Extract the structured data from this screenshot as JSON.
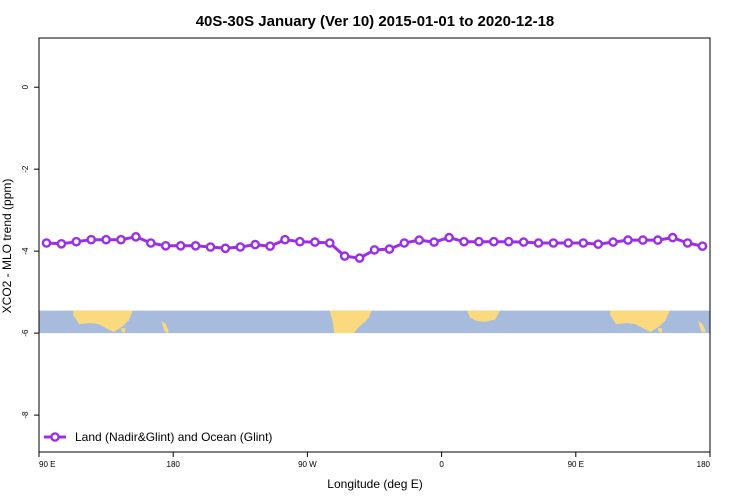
{
  "chart_data": {
    "type": "line",
    "title": "40S-30S January (Ver 10)   2015-01-01 to 2020-12-18",
    "xlabel": "Longitude (deg E)",
    "ylabel": "XCO2 - MLO trend (ppm)",
    "x_ticks": [
      {
        "value": 90,
        "label": "90 E"
      },
      {
        "value": 180,
        "label": "180"
      },
      {
        "value": 270,
        "label": "90 W"
      },
      {
        "value": 360,
        "label": "0"
      },
      {
        "value": 450,
        "label": "90 E"
      },
      {
        "value": 540,
        "label": "180"
      }
    ],
    "y_ticks": [
      {
        "value": 0,
        "label": "0"
      },
      {
        "value": -2,
        "label": "-2"
      },
      {
        "value": -4,
        "label": "-4"
      },
      {
        "value": -6,
        "label": "-6"
      },
      {
        "value": -8,
        "label": "-8"
      }
    ],
    "xlim": [
      90,
      540
    ],
    "ylim": [
      -8.9,
      1.2
    ],
    "map_strip_ylim": [
      -6.0,
      -5.45
    ],
    "series": [
      {
        "name": "Land (Nadir&Glint) and Ocean (Glint)",
        "color": "#9b2fe6",
        "x": [
          95,
          105,
          115,
          125,
          135,
          145,
          155,
          165,
          175,
          185,
          195,
          205,
          215,
          225,
          235,
          245,
          255,
          265,
          275,
          285,
          295,
          305,
          315,
          325,
          335,
          345,
          355,
          365,
          375,
          385,
          395,
          405,
          415,
          425,
          435,
          445,
          455,
          465,
          475,
          485,
          495,
          505,
          515,
          525,
          535
        ],
        "y": [
          -3.8,
          -3.82,
          -3.77,
          -3.72,
          -3.72,
          -3.72,
          -3.65,
          -3.8,
          -3.87,
          -3.87,
          -3.87,
          -3.9,
          -3.93,
          -3.9,
          -3.84,
          -3.88,
          -3.72,
          -3.77,
          -3.78,
          -3.8,
          -4.12,
          -4.17,
          -3.97,
          -3.95,
          -3.8,
          -3.73,
          -3.78,
          -3.67,
          -3.77,
          -3.77,
          -3.77,
          -3.77,
          -3.78,
          -3.8,
          -3.8,
          -3.8,
          -3.8,
          -3.83,
          -3.78,
          -3.73,
          -3.73,
          -3.73,
          -3.67,
          -3.8,
          -3.88
        ]
      }
    ],
    "legend_position": "bottom-left",
    "grid": false,
    "background_map": {
      "ocean_color": "#a7bcdc",
      "land_color": "#fbd97e"
    }
  }
}
